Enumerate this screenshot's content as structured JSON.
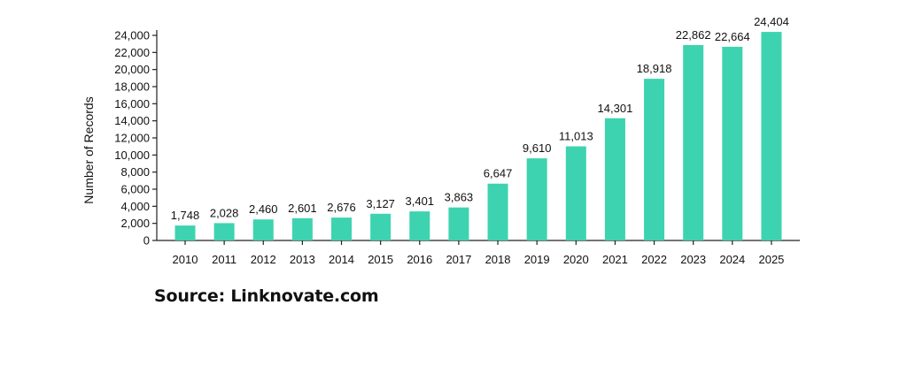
{
  "chart_data": {
    "type": "bar",
    "categories": [
      "2010",
      "2011",
      "2012",
      "2013",
      "2014",
      "2015",
      "2016",
      "2017",
      "2018",
      "2019",
      "2020",
      "2021",
      "2022",
      "2023",
      "2024",
      "2025"
    ],
    "values": [
      1748,
      2028,
      2460,
      2601,
      2676,
      3127,
      3401,
      3863,
      6647,
      9610,
      11013,
      14301,
      18918,
      22862,
      22664,
      24404
    ],
    "value_labels": [
      "1,748",
      "2,028",
      "2,460",
      "2,601",
      "2,676",
      "3,127",
      "3,401",
      "3,863",
      "6,647",
      "9,610",
      "11,013",
      "14,301",
      "18,918",
      "22,862",
      "22,664",
      "24,404"
    ],
    "title": "",
    "xlabel": "",
    "ylabel": "Number of Records",
    "ylim": [
      0,
      24000
    ],
    "yticks": [
      0,
      2000,
      4000,
      6000,
      8000,
      10000,
      12000,
      14000,
      16000,
      18000,
      20000,
      22000,
      24000
    ],
    "ytick_labels": [
      "0",
      "2,000",
      "4,000",
      "6,000",
      "8,000",
      "10,000",
      "12,000",
      "14,000",
      "16,000",
      "18,000",
      "20,000",
      "22,000",
      "24,000"
    ],
    "bar_color": "#3dd3b0",
    "grid": false,
    "legend": "none"
  },
  "source": "Source: Linknovate.com"
}
